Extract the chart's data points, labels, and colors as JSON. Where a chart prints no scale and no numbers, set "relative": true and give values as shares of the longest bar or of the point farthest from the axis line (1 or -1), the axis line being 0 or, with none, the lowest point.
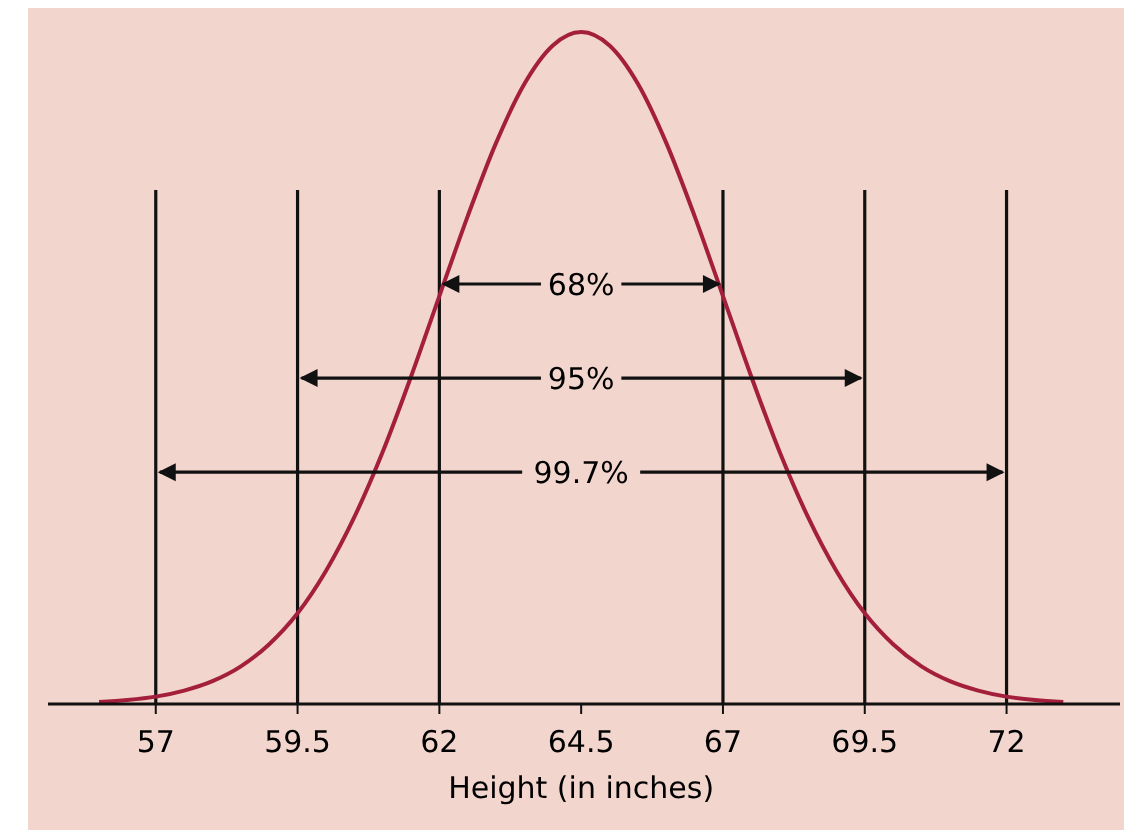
{
  "chart_data": {
    "type": "line",
    "relative": true,
    "xlabel": "Height (in inches)",
    "x": [
      56,
      56.5,
      57,
      57.5,
      58,
      58.5,
      59,
      59.5,
      60,
      60.5,
      61,
      61.5,
      62,
      62.5,
      63,
      63.5,
      64,
      64.5,
      65,
      65.5,
      66,
      66.5,
      67,
      67.5,
      68,
      68.5,
      69,
      69.5,
      70,
      70.5,
      71,
      71.5,
      72,
      72.5,
      73
    ],
    "series": [
      {
        "color": "#a31f3c",
        "values": [
          0.003,
          0.006,
          0.011,
          0.02,
          0.034,
          0.056,
          0.089,
          0.135,
          0.198,
          0.278,
          0.375,
          0.487,
          0.607,
          0.726,
          0.835,
          0.923,
          0.98,
          1,
          0.98,
          0.923,
          0.835,
          0.726,
          0.607,
          0.487,
          0.375,
          0.278,
          0.198,
          0.135,
          0.089,
          0.056,
          0.034,
          0.02,
          0.011,
          0.006,
          0.003
        ]
      }
    ],
    "xlim": [
      55.1,
      74
    ],
    "xticks": [
      57,
      59.5,
      62,
      64.5,
      67,
      69.5,
      72
    ],
    "ref_lines": [
      {
        "axis": "x",
        "value": 57
      },
      {
        "axis": "x",
        "value": 59.5
      },
      {
        "axis": "x",
        "value": 62
      },
      {
        "axis": "x",
        "value": 67
      },
      {
        "axis": "x",
        "value": 69.5
      },
      {
        "axis": "x",
        "value": 72
      }
    ],
    "annotations": [
      "68%",
      "95%",
      "99.7%"
    ],
    "grid": false,
    "marker": "none",
    "line_style": "solid"
  }
}
